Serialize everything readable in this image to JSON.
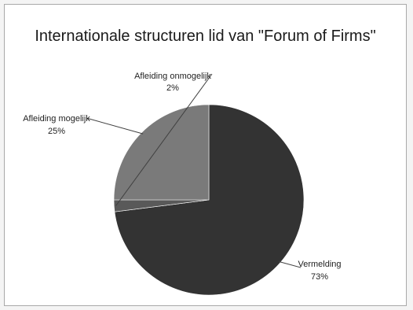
{
  "chart_data": {
    "type": "pie",
    "title": "Internationale structuren lid van \"Forum of Firms\"",
    "slices": [
      {
        "label": "Vermelding",
        "value": 73,
        "value_label": "73%",
        "color": "#333333"
      },
      {
        "label": "Afleiding onmogelijk",
        "value": 2,
        "value_label": "2%",
        "color": "#595959"
      },
      {
        "label": "Afleiding mogelijk",
        "value": 25,
        "value_label": "25%",
        "color": "#7a7a7a"
      }
    ],
    "start_angle_deg": 0,
    "direction": "clockwise",
    "legend": "none",
    "data_labels": "outside with leader lines"
  }
}
